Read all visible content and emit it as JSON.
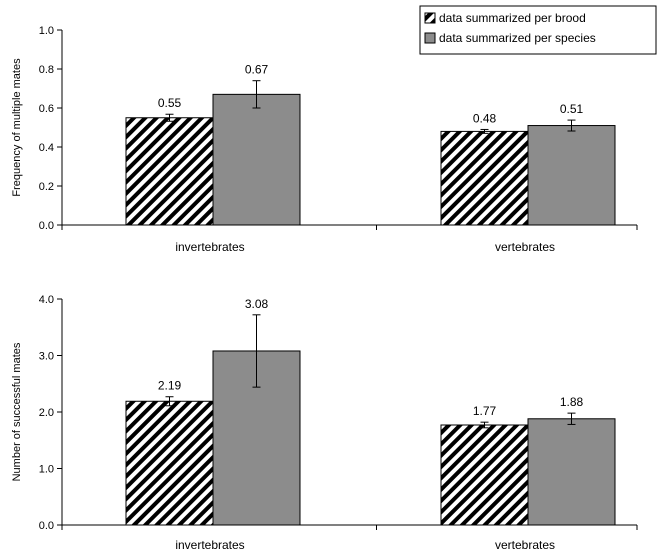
{
  "chart_data": [
    {
      "type": "bar",
      "categories": [
        "invertebrates",
        "vertebrates"
      ],
      "ylabel": "Frequency of multiple mates",
      "xlabel": "",
      "ylim": [
        0,
        1.0
      ],
      "yticks": [
        "0.0",
        "0.2",
        "0.4",
        "0.6",
        "0.8",
        "1.0"
      ],
      "tick_values": [
        0,
        0.2,
        0.4,
        0.6,
        0.8,
        1.0
      ],
      "series": [
        {
          "name": "data summarized per brood",
          "values": [
            0.55,
            0.48
          ],
          "labels": [
            "0.55",
            "0.48"
          ],
          "error": [
            0.018,
            0.01
          ],
          "pattern": "hatched"
        },
        {
          "name": "data summarized per species",
          "values": [
            0.67,
            0.51
          ],
          "labels": [
            "0.67",
            "0.51"
          ],
          "error": [
            0.07,
            0.028
          ],
          "color": "#8c8c8c"
        }
      ],
      "legend": "top-right",
      "grid": false
    },
    {
      "type": "bar",
      "categories": [
        "invertebrates",
        "vertebrates"
      ],
      "ylabel": "Number of successful mates",
      "xlabel": "",
      "ylim": [
        0,
        4.0
      ],
      "yticks": [
        "0.0",
        "1.0",
        "2.0",
        "3.0",
        "4.0"
      ],
      "tick_values": [
        0,
        1,
        2,
        3,
        4
      ],
      "series": [
        {
          "name": "data summarized per brood",
          "values": [
            2.19,
            1.77
          ],
          "labels": [
            "2.19",
            "1.77"
          ],
          "error": [
            0.08,
            0.05
          ],
          "pattern": "hatched"
        },
        {
          "name": "data summarized per species",
          "values": [
            3.08,
            1.88
          ],
          "labels": [
            "3.08",
            "1.88"
          ],
          "error": [
            0.64,
            0.1
          ],
          "color": "#8c8c8c"
        }
      ],
      "grid": false
    }
  ]
}
